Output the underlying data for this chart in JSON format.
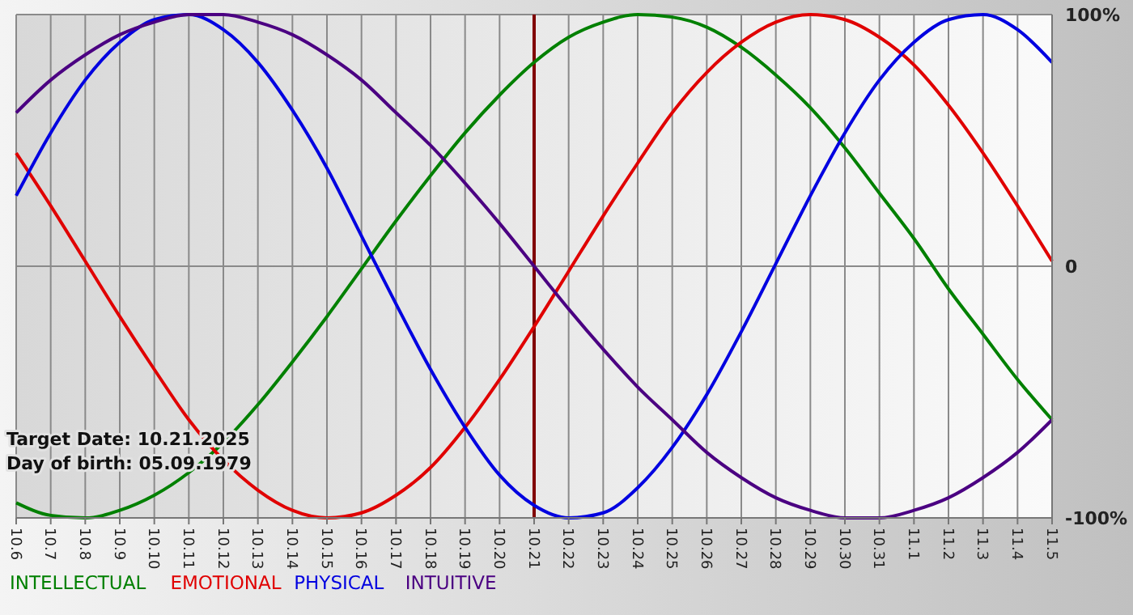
{
  "chart_data": {
    "type": "line",
    "categories": [
      "10.6",
      "10.7",
      "10.8",
      "10.9",
      "10.10",
      "10.11",
      "10.12",
      "10.13",
      "10.14",
      "10.15",
      "10.16",
      "10.17",
      "10.18",
      "10.19",
      "10.20",
      "10.21",
      "10.22",
      "10.23",
      "10.24",
      "10.25",
      "10.26",
      "10.27",
      "10.28",
      "10.29",
      "10.30",
      "10.31",
      "11.1",
      "11.2",
      "11.3",
      "11.4",
      "11.5"
    ],
    "series": [
      {
        "name": "INTELLECTUAL",
        "color": "#008000",
        "values": [
          -94,
          -99,
          -100,
          -97,
          -91,
          -82,
          -70,
          -55,
          -38,
          -20,
          -1,
          18,
          36,
          53,
          68,
          81,
          91,
          97,
          100,
          99,
          95,
          87,
          76,
          63,
          47,
          29,
          11,
          -9,
          -27,
          -45,
          -61
        ]
      },
      {
        "name": "EMOTIONAL",
        "color": "#e00000",
        "values": [
          45,
          24,
          2,
          -20,
          -41,
          -61,
          -77,
          -89,
          -97,
          -100,
          -98,
          -91,
          -80,
          -64,
          -45,
          -24,
          -2,
          20,
          41,
          61,
          77,
          89,
          97,
          100,
          98,
          91,
          80,
          64,
          45,
          24,
          2
        ]
      },
      {
        "name": "PHYSICAL",
        "color": "#0000e0",
        "values": [
          28,
          53,
          74,
          89,
          98,
          100,
          94,
          81,
          62,
          39,
          12,
          -15,
          -41,
          -64,
          -83,
          -95,
          -100,
          -98,
          -88,
          -72,
          -51,
          -26,
          1,
          28,
          53,
          74,
          89,
          98,
          100,
          94,
          81
        ]
      },
      {
        "name": "INTUITIVE",
        "color": "#4b0082",
        "values": [
          61,
          74,
          84,
          92,
          97,
          100,
          100,
          97,
          92,
          84,
          74,
          61,
          48,
          33,
          17,
          0,
          -17,
          -33,
          -48,
          -61,
          -74,
          -84,
          -92,
          -97,
          -100,
          -100,
          -97,
          -92,
          -84,
          -74,
          -61
        ]
      }
    ],
    "ylim": [
      -100,
      100
    ],
    "yticks": [
      {
        "value": 100,
        "label": "100%"
      },
      0,
      {
        "value": -100,
        "label": "-100%"
      }
    ],
    "grid": true,
    "legend": "bottom left",
    "marker": "none",
    "line_style": "solid",
    "ref_lines": [
      {
        "axis": "x",
        "value": "10.21",
        "color": "#800000"
      }
    ],
    "annotations": [
      "Target Date: 10.21.2025",
      "Day of birth: 05.09.1979"
    ]
  }
}
